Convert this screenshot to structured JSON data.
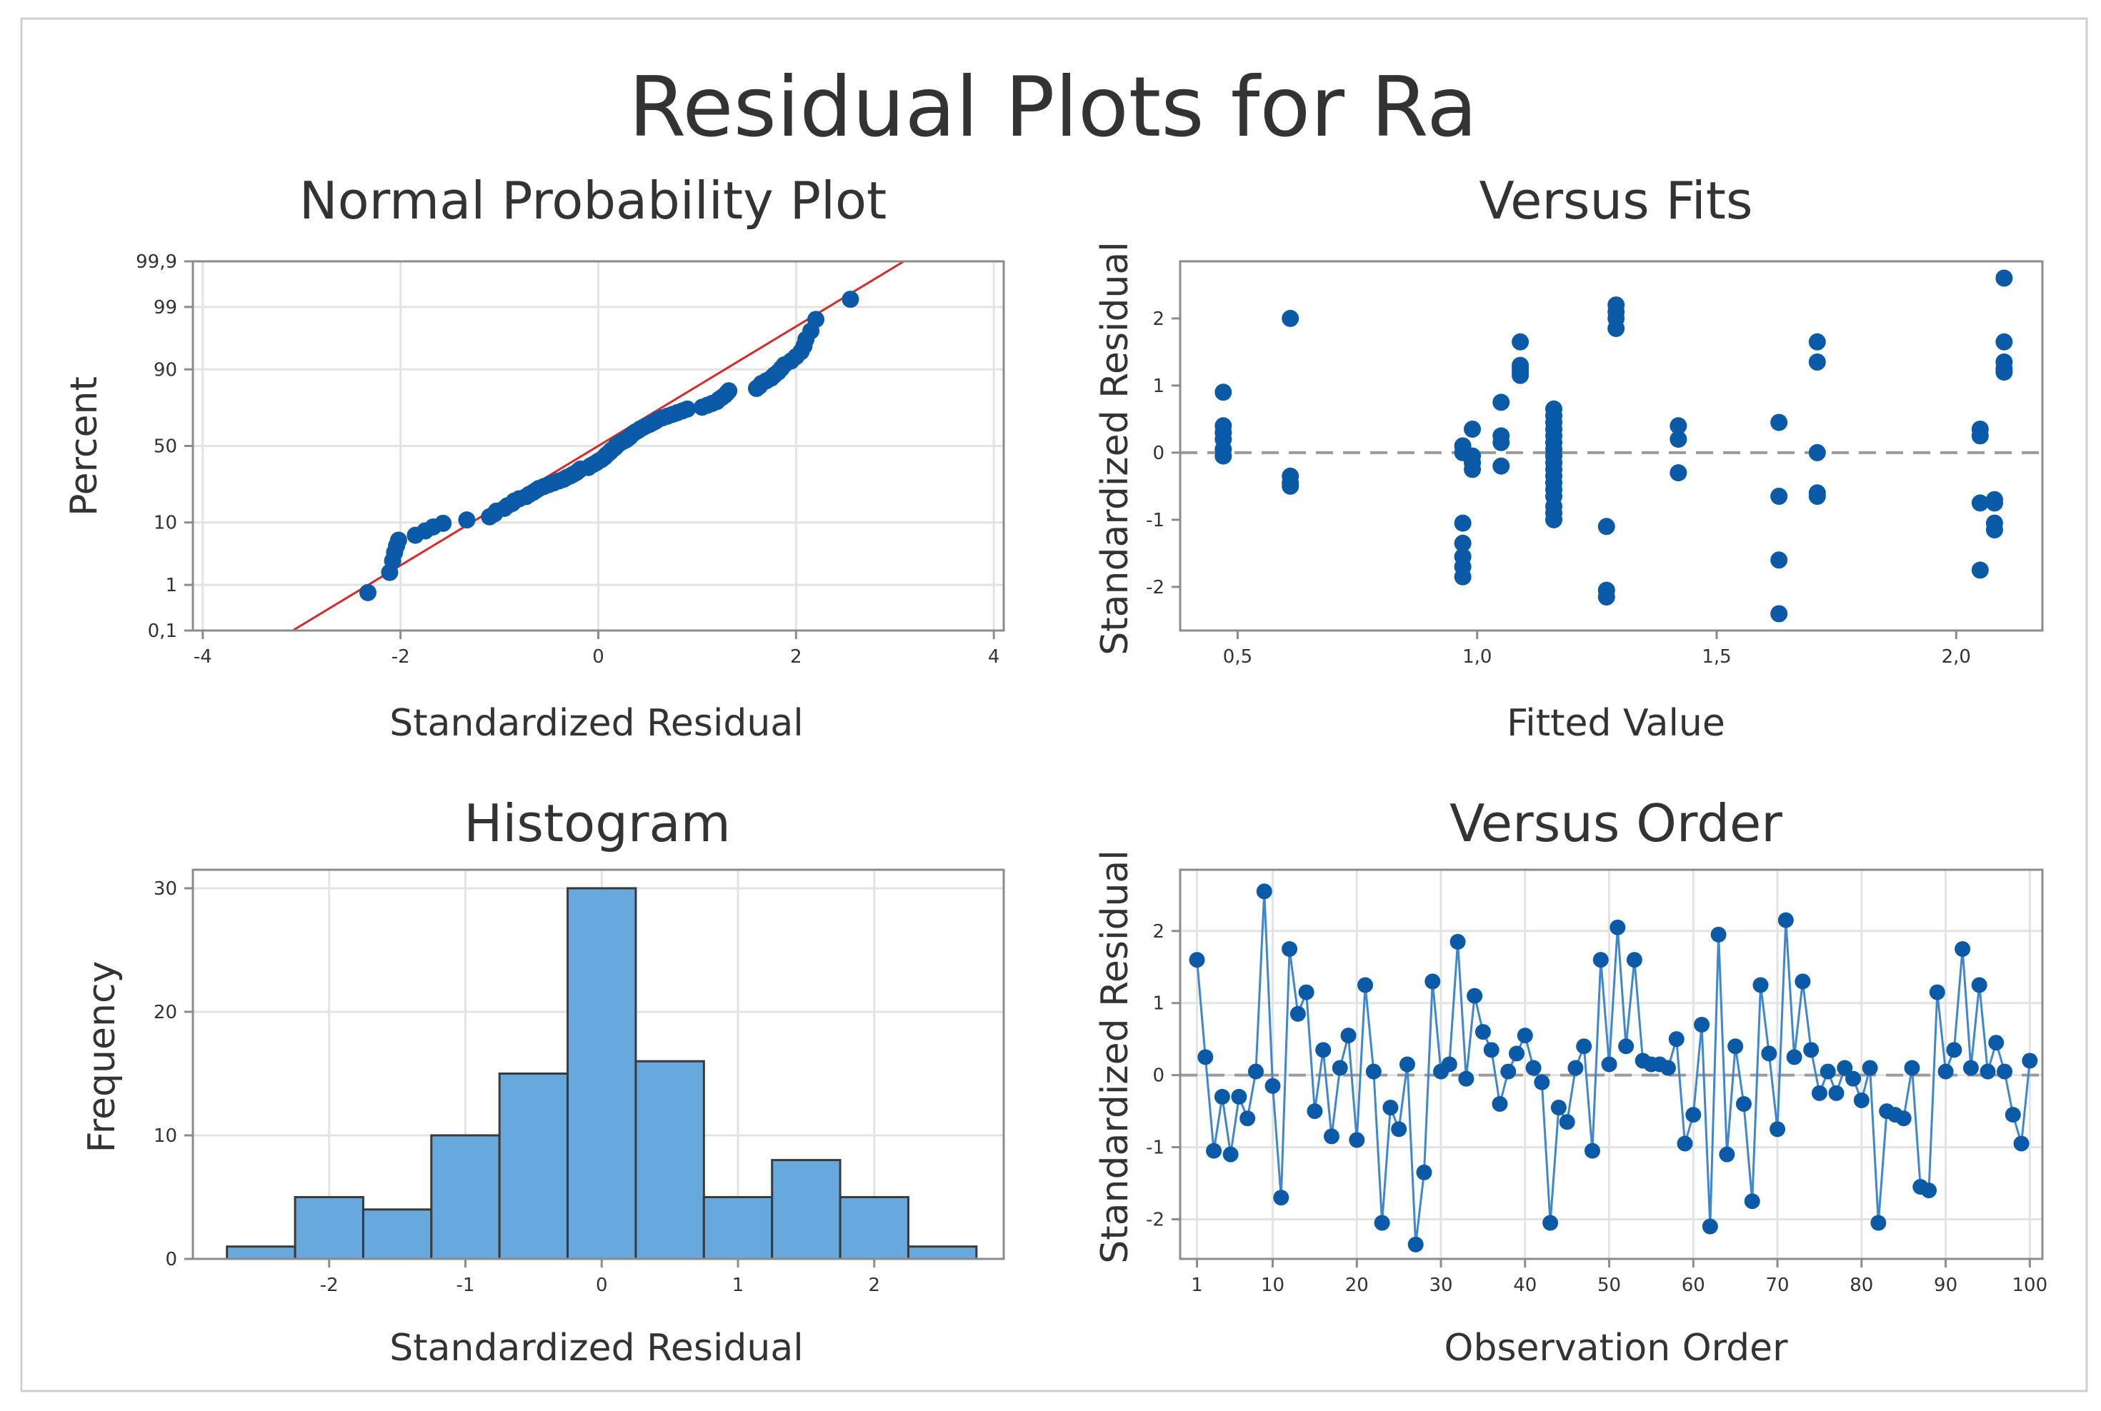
{
  "title": "Residual Plots for Ra",
  "colors": {
    "point": "#0b5aa8",
    "bar_fill": "#67a9dc",
    "bar_stroke": "#3a3a3a",
    "fit_line": "#d62a2a",
    "grid": "#e3e3e3",
    "frame": "#8c8c8c",
    "zero_line": "#9a9a9a",
    "order_line": "#3f86d0"
  },
  "chart_data": [
    {
      "type": "scatter",
      "title": "Normal Probability Plot",
      "xlabel": "Standardized Residual",
      "ylabel": "Percent",
      "xlim": [
        -4.1,
        4.1
      ],
      "xticks": [
        -4,
        -2,
        0,
        2,
        4
      ],
      "ytick_percents": [
        0.1,
        1,
        10,
        50,
        90,
        99,
        99.9
      ],
      "ytick_labels": [
        "0,1",
        "1",
        "10",
        "50",
        "90",
        "99",
        "99,9"
      ],
      "fit_line": {
        "slope": 1,
        "intercept": 0
      },
      "points_sorted_residuals": [
        -2.33,
        -2.11,
        -2.08,
        -2.06,
        -2.04,
        -2.02,
        -1.85,
        -1.75,
        -1.67,
        -1.57,
        -1.33,
        -1.1,
        -1.05,
        -1.03,
        -0.95,
        -0.92,
        -0.87,
        -0.85,
        -0.8,
        -0.73,
        -0.7,
        -0.66,
        -0.63,
        -0.6,
        -0.55,
        -0.5,
        -0.45,
        -0.4,
        -0.35,
        -0.32,
        -0.28,
        -0.25,
        -0.22,
        -0.2,
        -0.18,
        -0.1,
        -0.08,
        -0.05,
        -0.02,
        0.0,
        0.03,
        0.05,
        0.07,
        0.08,
        0.1,
        0.12,
        0.13,
        0.15,
        0.17,
        0.18,
        0.2,
        0.22,
        0.25,
        0.28,
        0.3,
        0.32,
        0.33,
        0.35,
        0.37,
        0.4,
        0.42,
        0.45,
        0.48,
        0.52,
        0.55,
        0.58,
        0.6,
        0.65,
        0.7,
        0.75,
        0.8,
        0.85,
        0.9,
        1.05,
        1.1,
        1.15,
        1.2,
        1.22,
        1.25,
        1.28,
        1.3,
        1.32,
        1.6,
        1.63,
        1.65,
        1.7,
        1.75,
        1.78,
        1.82,
        1.85,
        1.88,
        1.95,
        2.0,
        2.05,
        2.08,
        2.1,
        2.15,
        2.2,
        2.55
      ]
    },
    {
      "type": "scatter",
      "title": "Versus Fits",
      "xlabel": "Fitted Value",
      "ylabel": "Standardized Residual",
      "xlim": [
        0.38,
        2.18
      ],
      "ylim": [
        -2.65,
        2.85
      ],
      "xticks": [
        0.5,
        1.0,
        1.5,
        2.0
      ],
      "xtick_labels": [
        "0,5",
        "1,0",
        "1,5",
        "2,0"
      ],
      "yticks": [
        -2,
        -1,
        0,
        1,
        2
      ],
      "reference_line": 0,
      "points": [
        [
          0.47,
          0.9
        ],
        [
          0.47,
          0.4
        ],
        [
          0.47,
          0.3
        ],
        [
          0.47,
          0.2
        ],
        [
          0.47,
          0.05
        ],
        [
          0.47,
          -0.05
        ],
        [
          0.61,
          2.0
        ],
        [
          0.61,
          -0.35
        ],
        [
          0.61,
          -0.45
        ],
        [
          0.61,
          -0.5
        ],
        [
          0.97,
          0.1
        ],
        [
          0.97,
          0.0
        ],
        [
          0.97,
          -1.05
        ],
        [
          0.97,
          -1.35
        ],
        [
          0.97,
          -1.55
        ],
        [
          0.97,
          -1.7
        ],
        [
          0.97,
          -1.85
        ],
        [
          0.99,
          0.35
        ],
        [
          0.99,
          -0.05
        ],
        [
          0.99,
          -0.15
        ],
        [
          0.99,
          -0.25
        ],
        [
          1.05,
          0.75
        ],
        [
          1.05,
          0.25
        ],
        [
          1.05,
          0.15
        ],
        [
          1.05,
          -0.2
        ],
        [
          1.09,
          1.65
        ],
        [
          1.09,
          1.3
        ],
        [
          1.09,
          1.25
        ],
        [
          1.09,
          1.2
        ],
        [
          1.09,
          1.15
        ],
        [
          1.16,
          0.65
        ],
        [
          1.16,
          0.55
        ],
        [
          1.16,
          0.45
        ],
        [
          1.16,
          0.35
        ],
        [
          1.16,
          0.25
        ],
        [
          1.16,
          0.15
        ],
        [
          1.16,
          0.05
        ],
        [
          1.16,
          -0.05
        ],
        [
          1.16,
          -0.15
        ],
        [
          1.16,
          -0.25
        ],
        [
          1.16,
          -0.35
        ],
        [
          1.16,
          -0.45
        ],
        [
          1.16,
          -0.55
        ],
        [
          1.16,
          -0.65
        ],
        [
          1.16,
          -0.8
        ],
        [
          1.16,
          -0.9
        ],
        [
          1.16,
          -1.0
        ],
        [
          1.27,
          -1.1
        ],
        [
          1.27,
          -2.05
        ],
        [
          1.27,
          -2.15
        ],
        [
          1.29,
          2.2
        ],
        [
          1.29,
          2.1
        ],
        [
          1.29,
          2.0
        ],
        [
          1.29,
          1.85
        ],
        [
          1.42,
          0.4
        ],
        [
          1.42,
          0.2
        ],
        [
          1.42,
          -0.3
        ],
        [
          1.63,
          0.45
        ],
        [
          1.63,
          -0.65
        ],
        [
          1.63,
          -1.6
        ],
        [
          1.63,
          -2.4
        ],
        [
          1.71,
          1.65
        ],
        [
          1.71,
          1.35
        ],
        [
          1.71,
          0.0
        ],
        [
          1.71,
          -0.6
        ],
        [
          1.71,
          -0.65
        ],
        [
          2.05,
          0.35
        ],
        [
          2.05,
          0.25
        ],
        [
          2.05,
          -0.75
        ],
        [
          2.05,
          -1.75
        ],
        [
          2.08,
          -0.7
        ],
        [
          2.08,
          -0.75
        ],
        [
          2.08,
          -1.05
        ],
        [
          2.08,
          -1.15
        ],
        [
          2.1,
          2.6
        ],
        [
          2.1,
          1.65
        ],
        [
          2.1,
          1.35
        ],
        [
          2.1,
          1.25
        ],
        [
          2.1,
          1.2
        ]
      ]
    },
    {
      "type": "bar",
      "title": "Histogram",
      "xlabel": "Standardized Residual",
      "ylabel": "Frequency",
      "xlim": [
        -3.0,
        2.95
      ],
      "ylim": [
        0,
        31.5
      ],
      "xticks": [
        -2,
        -1,
        0,
        1,
        2
      ],
      "yticks": [
        0,
        10,
        20,
        30
      ],
      "bin_edges": [
        -2.75,
        -2.25,
        -1.75,
        -1.25,
        -0.75,
        -0.25,
        0.25,
        0.75,
        1.25,
        1.75,
        2.25,
        2.75
      ],
      "values": [
        1,
        5,
        4,
        10,
        15,
        30,
        16,
        5,
        8,
        5,
        1
      ]
    },
    {
      "type": "line",
      "title": "Versus Order",
      "xlabel": "Observation Order",
      "ylabel": "Standardized Residual",
      "xlim": [
        -1,
        101.5
      ],
      "ylim": [
        -2.55,
        2.85
      ],
      "xticks": [
        1,
        10,
        20,
        30,
        40,
        50,
        60,
        70,
        80,
        90,
        100
      ],
      "yticks": [
        -2,
        -1,
        0,
        1,
        2
      ],
      "reference_line": 0,
      "values": [
        1.6,
        0.25,
        -1.05,
        -0.3,
        -1.1,
        -0.3,
        -0.6,
        0.05,
        2.55,
        -0.15,
        -1.7,
        1.75,
        0.85,
        1.15,
        -0.5,
        0.35,
        -0.85,
        0.1,
        0.55,
        -0.9,
        1.25,
        0.05,
        -2.05,
        -0.45,
        -0.75,
        0.15,
        -2.35,
        -1.35,
        1.3,
        0.05,
        0.15,
        1.85,
        -0.05,
        1.1,
        0.6,
        0.35,
        -0.4,
        0.05,
        0.3,
        0.55,
        0.1,
        -0.1,
        -2.05,
        -0.45,
        -0.65,
        0.1,
        0.4,
        -1.05,
        1.6,
        0.15,
        2.05,
        0.4,
        1.6,
        0.2,
        0.15,
        0.15,
        0.1,
        0.5,
        -0.95,
        -0.55,
        0.7,
        -2.1,
        1.95,
        -1.1,
        0.4,
        -0.4,
        -1.75,
        1.25,
        0.3,
        -0.75,
        2.15,
        0.25,
        1.3,
        0.35,
        -0.25,
        0.05,
        -0.25,
        0.1,
        -0.05,
        -0.35,
        0.1,
        -2.05,
        -0.5,
        -0.55,
        -0.6,
        0.1,
        -1.55,
        -1.6,
        1.15,
        0.05,
        0.35,
        1.75,
        0.1,
        1.25,
        0.05,
        0.45,
        0.05,
        -0.55,
        -0.95,
        0.2
      ]
    }
  ]
}
